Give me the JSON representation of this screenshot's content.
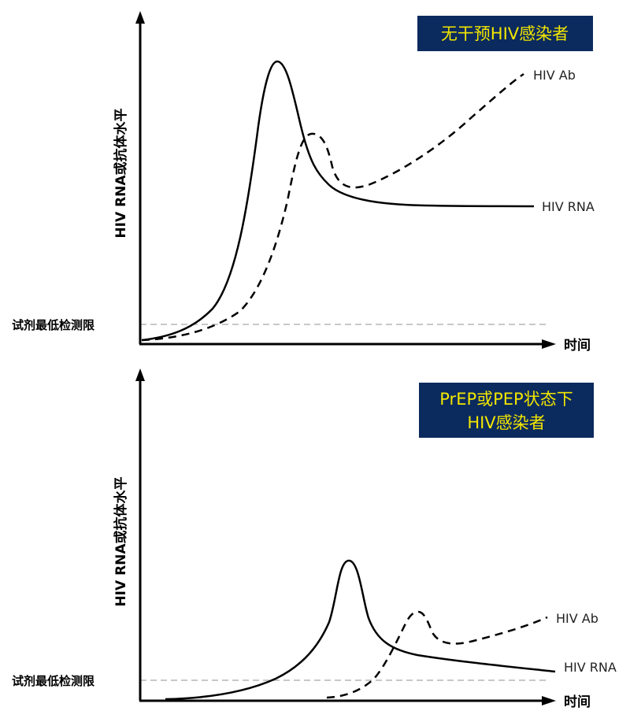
{
  "colors": {
    "banner_bg": "#0b2a5e",
    "banner_text": "#f2e600",
    "axis": "#000000",
    "lod_line": "#c8c8c8",
    "curve": "#000000"
  },
  "top_panel": {
    "banner_text": "无干预HIV感染者",
    "y_axis_label": "HIV RNA或抗体水平",
    "x_axis_label": "时间",
    "lod_label": "试剂最低检测限",
    "rna_label": "HIV RNA",
    "ab_label": "HIV Ab"
  },
  "bottom_panel": {
    "banner_line1": "PrEP或PEP状态下",
    "banner_line2": "HIV感染者",
    "y_axis_label": "HIV RNA或抗体水平",
    "x_axis_label": "时间",
    "lod_label": "试剂最低检测限",
    "rna_label": "HIV RNA",
    "ab_label": "HIV Ab"
  },
  "legend_styles": {
    "rna_line_style": "solid",
    "ab_line_style": "dashed"
  }
}
